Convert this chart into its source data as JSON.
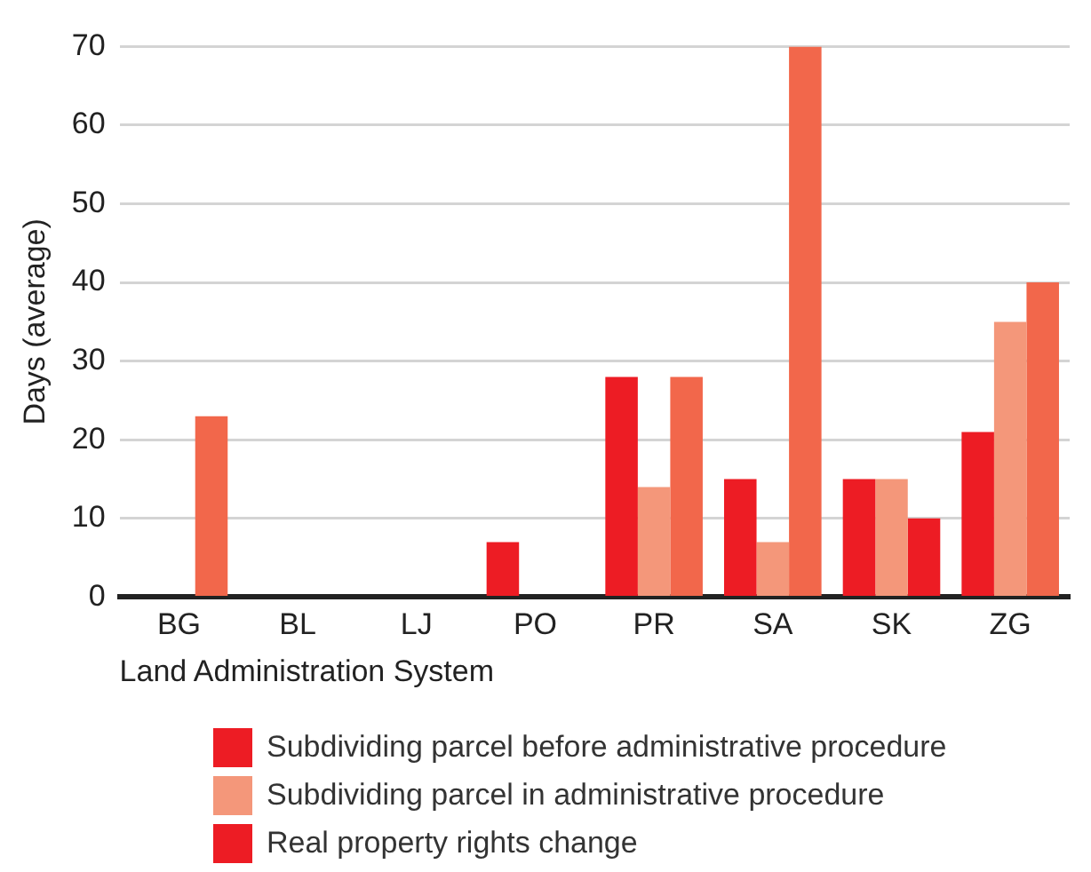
{
  "chart_data": {
    "type": "bar",
    "xlabel": "Land Administration System",
    "ylabel": "Days (average)",
    "categories": [
      "BG",
      "BL",
      "LJ",
      "PO",
      "PR",
      "SA",
      "SK",
      "ZG"
    ],
    "series": [
      {
        "name": "Subdividing parcel before administrative procedure",
        "color": "#ed1c24",
        "values": [
          null,
          null,
          null,
          7,
          28,
          15,
          15,
          21
        ]
      },
      {
        "name": "Subdividing parcel in administrative procedure",
        "color": "#f4977a",
        "values": [
          null,
          null,
          null,
          null,
          14,
          7,
          15,
          35
        ]
      },
      {
        "name": "Real property rights change",
        "color": "#ed1c24",
        "colors": [
          "#f2674b",
          "#f2674b",
          "#f2674b",
          "#f2674b",
          "#f2674b",
          "#f2674b",
          "#ed1c24",
          "#f2674b"
        ],
        "values": [
          23,
          null,
          null,
          null,
          28,
          70,
          10,
          40
        ]
      }
    ],
    "ylim": [
      0,
      70
    ],
    "yticks": [
      0,
      10,
      20,
      30,
      40,
      50,
      60,
      70
    ],
    "grid": "y",
    "legend": "bottom"
  }
}
